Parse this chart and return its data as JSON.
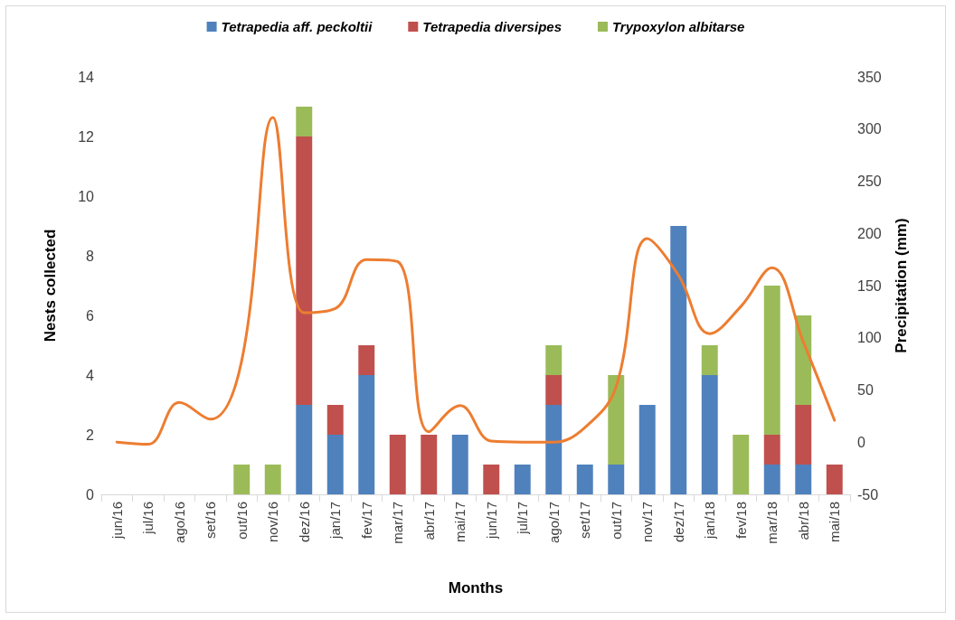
{
  "chart_data": {
    "type": "bar",
    "stacked": true,
    "xlabel": "Months",
    "ylabel": "Nests collected",
    "y2label": "Precipitation (mm)",
    "categories": [
      "jun/16",
      "jul/16",
      "ago/16",
      "set/16",
      "out/16",
      "nov/16",
      "dez/16",
      "jan/17",
      "fev/17",
      "mar/17",
      "abr/17",
      "mai/17",
      "jun/17",
      "jul/17",
      "ago/17",
      "set/17",
      "out/17",
      "nov/17",
      "dez/17",
      "jan/18",
      "fev/18",
      "mar/18",
      "abr/18",
      "mai/18"
    ],
    "series": [
      {
        "name": "Tetrapedia aff. peckoltii",
        "color": "#4f81bd",
        "values": [
          null,
          null,
          null,
          null,
          null,
          null,
          3,
          2,
          4,
          null,
          null,
          2,
          null,
          1,
          3,
          1,
          1,
          3,
          9,
          4,
          null,
          1,
          1,
          null
        ]
      },
      {
        "name": "Tetrapedia diversipes",
        "color": "#c0504d",
        "values": [
          null,
          null,
          null,
          null,
          null,
          null,
          9,
          1,
          1,
          2,
          2,
          null,
          1,
          null,
          1,
          null,
          null,
          null,
          null,
          null,
          null,
          1,
          2,
          1
        ]
      },
      {
        "name": "Trypoxylon albitarse",
        "color": "#9bbb59",
        "values": [
          null,
          null,
          null,
          null,
          1,
          1,
          1,
          null,
          null,
          null,
          null,
          null,
          null,
          null,
          1,
          null,
          3,
          null,
          null,
          1,
          2,
          5,
          3,
          null
        ]
      },
      {
        "type": "line",
        "axis": "y2",
        "color": "#ed7d31",
        "values": [
          0,
          -2,
          38,
          22,
          78,
          311,
          124,
          128,
          175,
          173,
          10,
          35,
          1,
          0,
          0,
          14,
          53,
          195,
          160,
          104,
          130,
          167,
          96,
          21
        ]
      }
    ],
    "ylim": [
      0,
      14
    ],
    "yticks": [
      0,
      2,
      4,
      6,
      8,
      10,
      12,
      14
    ],
    "y2lim": [
      -50,
      350
    ],
    "y2ticks": [
      -50,
      0,
      50,
      100,
      150,
      200,
      250,
      300,
      350
    ],
    "grid": false,
    "legend": "top",
    "marker": "none",
    "line_style": "solid"
  }
}
